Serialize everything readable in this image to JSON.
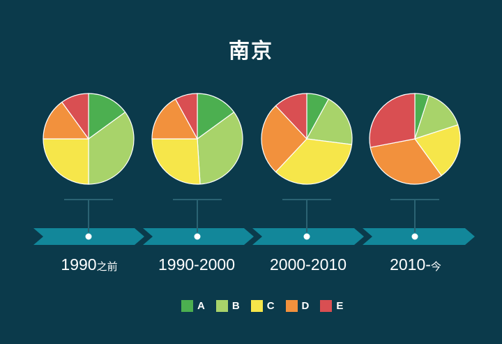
{
  "title": "南京",
  "chart_data": {
    "type": "pie",
    "title": "南京",
    "series_names": [
      "A",
      "B",
      "C",
      "D",
      "E"
    ],
    "colors": [
      "#4caf50",
      "#a8d36a",
      "#f6e64a",
      "#f2913d",
      "#d94f52"
    ],
    "charts": [
      {
        "label": "1990之前",
        "values": [
          15,
          35,
          25,
          15,
          10
        ]
      },
      {
        "label": "1990-2000",
        "values": [
          15,
          34,
          26,
          17,
          8
        ]
      },
      {
        "label": "2000-2010",
        "values": [
          8,
          19,
          35,
          26,
          12
        ]
      },
      {
        "label": "2010-今",
        "values": [
          5,
          15,
          20,
          32,
          28
        ]
      }
    ]
  },
  "periods": [
    {
      "main": "1990",
      "suffix": "之前"
    },
    {
      "main": "1990-2000",
      "suffix": ""
    },
    {
      "main": "2000-2010",
      "suffix": ""
    },
    {
      "main": "2010-",
      "suffix": "今"
    }
  ],
  "legend": [
    {
      "label": "A",
      "color": "#4caf50"
    },
    {
      "label": "B",
      "color": "#a8d36a"
    },
    {
      "label": "C",
      "color": "#f6e64a"
    },
    {
      "label": "D",
      "color": "#f2913d"
    },
    {
      "label": "E",
      "color": "#d94f52"
    }
  ]
}
